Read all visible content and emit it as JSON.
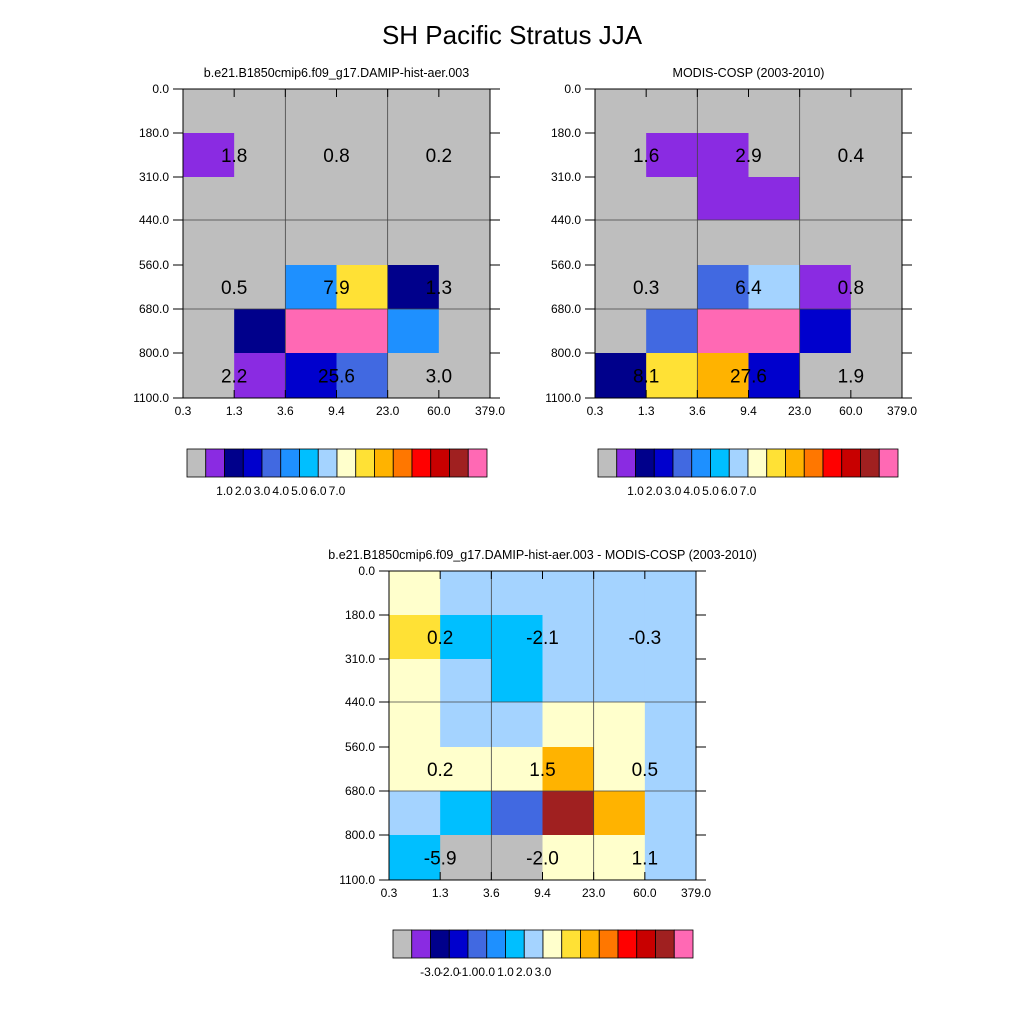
{
  "title": "SH Pacific Stratus JJA",
  "chart_data": [
    {
      "type": "heatmap",
      "title": "b.e21.B1850cmip6.f09_g17.DAMIP-hist-aer.003",
      "x_ticks": [
        "0.3",
        "1.3",
        "3.6",
        "9.4",
        "23.0",
        "60.0",
        "379.0"
      ],
      "y_ticks": [
        "0.0",
        "180.0",
        "310.0",
        "440.0",
        "560.0",
        "680.0",
        "800.0",
        "1100.0"
      ],
      "cells": [
        [
          "#bebebe",
          "#bebebe",
          "#bebebe",
          "#bebebe",
          "#bebebe",
          "#bebebe"
        ],
        [
          "#8a2be2",
          "#bebebe",
          "#bebebe",
          "#bebebe",
          "#bebebe",
          "#bebebe"
        ],
        [
          "#bebebe",
          "#bebebe",
          "#bebebe",
          "#bebebe",
          "#bebebe",
          "#bebebe"
        ],
        [
          "#bebebe",
          "#bebebe",
          "#bebebe",
          "#bebebe",
          "#bebebe",
          "#bebebe"
        ],
        [
          "#bebebe",
          "#bebebe",
          "#1e90ff",
          "#ffe135",
          "#00008b",
          "#bebebe"
        ],
        [
          "#bebebe",
          "#00008b",
          "#ff69b4",
          "#ff69b4",
          "#1e90ff",
          "#bebebe"
        ],
        [
          "#bebebe",
          "#8a2be2",
          "#0000cd",
          "#4169e1",
          "#bebebe",
          "#bebebe"
        ]
      ],
      "annotations": [
        {
          "text": "1.8",
          "col": 0,
          "row": 1
        },
        {
          "text": "0.8",
          "col": 2,
          "row": 1
        },
        {
          "text": "0.2",
          "col": 4,
          "row": 1
        },
        {
          "text": "0.5",
          "col": 0,
          "row": 4
        },
        {
          "text": "7.9",
          "col": 2,
          "row": 4
        },
        {
          "text": "1.3",
          "col": 4,
          "row": 4
        },
        {
          "text": "2.2",
          "col": 0,
          "row": 6
        },
        {
          "text": "25.6",
          "col": 2,
          "row": 6
        },
        {
          "text": "3.0",
          "col": 4,
          "row": 6
        }
      ],
      "colorbar": {
        "colors": [
          "#bebebe",
          "#8a2be2",
          "#00008b",
          "#0000cd",
          "#4169e1",
          "#1e90ff",
          "#00bfff",
          "#a4d3ff",
          "#ffffcc",
          "#ffe135",
          "#ffb300",
          "#ff7700",
          "#ff0000",
          "#c80000",
          "#a02020",
          "#ff69b4"
        ],
        "labels": [
          "1.0",
          "2.0",
          "3.0",
          "4.0",
          "5.0",
          "6.0",
          "7.0"
        ]
      }
    },
    {
      "type": "heatmap",
      "title": "MODIS-COSP (2003-2010)",
      "x_ticks": [
        "0.3",
        "1.3",
        "3.6",
        "9.4",
        "23.0",
        "60.0",
        "379.0"
      ],
      "y_ticks": [
        "0.0",
        "180.0",
        "310.0",
        "440.0",
        "560.0",
        "680.0",
        "800.0",
        "1100.0"
      ],
      "cells": [
        [
          "#bebebe",
          "#bebebe",
          "#bebebe",
          "#bebebe",
          "#bebebe",
          "#bebebe"
        ],
        [
          "#bebebe",
          "#8a2be2",
          "#8a2be2",
          "#bebebe",
          "#bebebe",
          "#bebebe"
        ],
        [
          "#bebebe",
          "#bebebe",
          "#8a2be2",
          "#8a2be2",
          "#bebebe",
          "#bebebe"
        ],
        [
          "#bebebe",
          "#bebebe",
          "#bebebe",
          "#bebebe",
          "#bebebe",
          "#bebebe"
        ],
        [
          "#bebebe",
          "#bebebe",
          "#4169e1",
          "#a4d3ff",
          "#8a2be2",
          "#bebebe"
        ],
        [
          "#bebebe",
          "#4169e1",
          "#ff69b4",
          "#ff69b4",
          "#0000cd",
          "#bebebe"
        ],
        [
          "#00008b",
          "#ffe135",
          "#ffb300",
          "#0000cd",
          "#bebebe",
          "#bebebe"
        ]
      ],
      "annotations": [
        {
          "text": "1.6",
          "col": 0,
          "row": 1
        },
        {
          "text": "2.9",
          "col": 2,
          "row": 1
        },
        {
          "text": "0.4",
          "col": 4,
          "row": 1
        },
        {
          "text": "0.3",
          "col": 0,
          "row": 4
        },
        {
          "text": "6.4",
          "col": 2,
          "row": 4
        },
        {
          "text": "0.8",
          "col": 4,
          "row": 4
        },
        {
          "text": "8.1",
          "col": 0,
          "row": 6
        },
        {
          "text": "27.6",
          "col": 2,
          "row": 6
        },
        {
          "text": "1.9",
          "col": 4,
          "row": 6
        }
      ],
      "colorbar": {
        "colors": [
          "#bebebe",
          "#8a2be2",
          "#00008b",
          "#0000cd",
          "#4169e1",
          "#1e90ff",
          "#00bfff",
          "#a4d3ff",
          "#ffffcc",
          "#ffe135",
          "#ffb300",
          "#ff7700",
          "#ff0000",
          "#c80000",
          "#a02020",
          "#ff69b4"
        ],
        "labels": [
          "1.0",
          "2.0",
          "3.0",
          "4.0",
          "5.0",
          "6.0",
          "7.0"
        ]
      }
    },
    {
      "type": "heatmap",
      "title": "b.e21.B1850cmip6.f09_g17.DAMIP-hist-aer.003 - MODIS-COSP (2003-2010)",
      "x_ticks": [
        "0.3",
        "1.3",
        "3.6",
        "9.4",
        "23.0",
        "60.0",
        "379.0"
      ],
      "y_ticks": [
        "0.0",
        "180.0",
        "310.0",
        "440.0",
        "560.0",
        "680.0",
        "800.0",
        "1100.0"
      ],
      "cells": [
        [
          "#ffffcc",
          "#a4d3ff",
          "#a4d3ff",
          "#a4d3ff",
          "#a4d3ff",
          "#a4d3ff"
        ],
        [
          "#ffe135",
          "#00bfff",
          "#00bfff",
          "#a4d3ff",
          "#a4d3ff",
          "#a4d3ff"
        ],
        [
          "#ffffcc",
          "#a4d3ff",
          "#00bfff",
          "#a4d3ff",
          "#a4d3ff",
          "#a4d3ff"
        ],
        [
          "#ffffcc",
          "#a4d3ff",
          "#a4d3ff",
          "#ffffcc",
          "#ffffcc",
          "#a4d3ff"
        ],
        [
          "#ffffcc",
          "#ffffcc",
          "#ffffcc",
          "#ffb300",
          "#ffffcc",
          "#a4d3ff"
        ],
        [
          "#a4d3ff",
          "#00bfff",
          "#4169e1",
          "#a02020",
          "#ffb300",
          "#a4d3ff"
        ],
        [
          "#00bfff",
          "#bebebe",
          "#bebebe",
          "#ffffcc",
          "#ffffcc",
          "#a4d3ff"
        ]
      ],
      "annotations": [
        {
          "text": "0.2",
          "col": 0,
          "row": 1
        },
        {
          "text": "-2.1",
          "col": 2,
          "row": 1
        },
        {
          "text": "-0.3",
          "col": 4,
          "row": 1
        },
        {
          "text": "0.2",
          "col": 0,
          "row": 4
        },
        {
          "text": "1.5",
          "col": 2,
          "row": 4
        },
        {
          "text": "0.5",
          "col": 4,
          "row": 4
        },
        {
          "text": "-5.9",
          "col": 0,
          "row": 6
        },
        {
          "text": "-2.0",
          "col": 2,
          "row": 6
        },
        {
          "text": "1.1",
          "col": 4,
          "row": 6
        }
      ],
      "colorbar": {
        "colors": [
          "#bebebe",
          "#8a2be2",
          "#00008b",
          "#0000cd",
          "#4169e1",
          "#1e90ff",
          "#00bfff",
          "#a4d3ff",
          "#ffffcc",
          "#ffe135",
          "#ffb300",
          "#ff7700",
          "#ff0000",
          "#c80000",
          "#a02020",
          "#ff69b4"
        ],
        "labels": [
          "-3.0",
          "-2.0",
          "-1.0",
          "0.0",
          "1.0",
          "2.0",
          "3.0"
        ]
      }
    }
  ]
}
